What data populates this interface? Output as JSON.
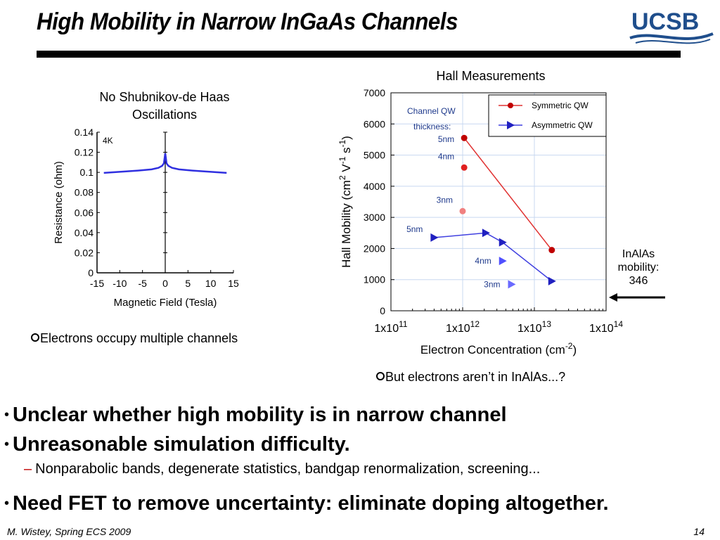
{
  "slide": {
    "title": "High Mobility in Narrow InGaAs Channels",
    "logo_text": "UCSB",
    "footer_left": "M. Wistey, Spring ECS 2009",
    "page_number": "14"
  },
  "left_panel": {
    "caption_line1": "No Shubnikov-de Haas",
    "caption_line2": "Oscillations",
    "note": "Electrons occupy multiple channels"
  },
  "right_panel": {
    "caption": "Hall Measurements",
    "note": "But electrons aren’t in InAlAs...?",
    "inalas_label_line1": "InAlAs",
    "inalas_label_line2": "mobility:",
    "inalas_label_line3": "346"
  },
  "bullets": [
    {
      "text": "Unclear whether high mobility is in narrow channel"
    },
    {
      "text": "Unreasonable simulation difficulty."
    },
    {
      "text": "Need FET to remove uncertainty: eliminate doping altogether."
    }
  ],
  "sub_bullet": "Nonparabolic bands, degenerate statistics, bandgap renormalization, screening...",
  "colors": {
    "curve_blue": "#3030e0",
    "symmetric": "#c00000",
    "asymmetric": "#2020c0",
    "sym_point_3nm": "#f08080",
    "asym_point_light": "#5050ff",
    "grid": "#c8d8f0"
  },
  "chart_data": [
    {
      "type": "line",
      "annotation": "4K",
      "xlabel": "Magnetic Field (Tesla)",
      "ylabel": "Resistance (ohm)",
      "xlim": [
        -15,
        15
      ],
      "ylim": [
        0,
        0.14
      ],
      "xticks": [
        "-15",
        "-10",
        "-5",
        "0",
        "5",
        "10",
        "15"
      ],
      "yticks": [
        "0",
        "0.02",
        "0.04",
        "0.06",
        "0.08",
        "0.1",
        "0.12",
        "0.14"
      ],
      "series": [
        {
          "x": [
            -13.5,
            -10,
            -6,
            -3,
            -1.5,
            -0.7,
            -0.3,
            0,
            0.3,
            0.7,
            1.5,
            3,
            6,
            10,
            13.5
          ],
          "y": [
            0.0995,
            0.1005,
            0.1018,
            0.103,
            0.1045,
            0.1065,
            0.109,
            0.119,
            0.109,
            0.1065,
            0.1045,
            0.103,
            0.1018,
            0.1005,
            0.0995
          ]
        }
      ]
    },
    {
      "type": "scatter",
      "xlabel": "Electron Concentration (cm-2)",
      "ylabel": "Hall Mobility (cm2 V-1 s-1)",
      "xscale": "log",
      "xlim": [
        100000000000.0,
        100000000000000.0
      ],
      "ylim": [
        0,
        7000
      ],
      "xticks": [
        "1x1011",
        "1x1012",
        "1x1013",
        "1x1014"
      ],
      "yticks": [
        "0",
        "1000",
        "2000",
        "3000",
        "4000",
        "5000",
        "6000",
        "7000"
      ],
      "legend": {
        "placement": "top-right",
        "entries": [
          "Symmetric QW",
          "Asymmetric QW"
        ]
      },
      "annotation_title_line1": "Channel QW",
      "annotation_title_line2": "thickness:",
      "series": [
        {
          "name": "Symmetric QW",
          "line_x": [
            1050000000000.0,
            17500000000000.0
          ],
          "line_y": [
            5550,
            1950
          ],
          "points": [
            {
              "x": 1050000000000.0,
              "y": 5550,
              "label": "5nm"
            },
            {
              "x": 1050000000000.0,
              "y": 4600,
              "label": "4nm"
            },
            {
              "x": 1000000000000.0,
              "y": 3200,
              "label": "3nm"
            },
            {
              "x": 17500000000000.0,
              "y": 1950,
              "label": ""
            }
          ]
        },
        {
          "name": "Asymmetric QW",
          "line_x": [
            400000000000.0,
            2100000000000.0,
            3600000000000.0,
            17500000000000.0
          ],
          "line_y": [
            2350,
            2500,
            2200,
            950
          ],
          "points": [
            {
              "x": 400000000000.0,
              "y": 2350,
              "label": "5nm"
            },
            {
              "x": 2100000000000.0,
              "y": 2500,
              "label": ""
            },
            {
              "x": 3600000000000.0,
              "y": 2200,
              "label": ""
            },
            {
              "x": 3600000000000.0,
              "y": 1600,
              "label": "4nm"
            },
            {
              "x": 4800000000000.0,
              "y": 850,
              "label": "3nm"
            },
            {
              "x": 17500000000000.0,
              "y": 950,
              "label": ""
            }
          ]
        }
      ]
    }
  ]
}
